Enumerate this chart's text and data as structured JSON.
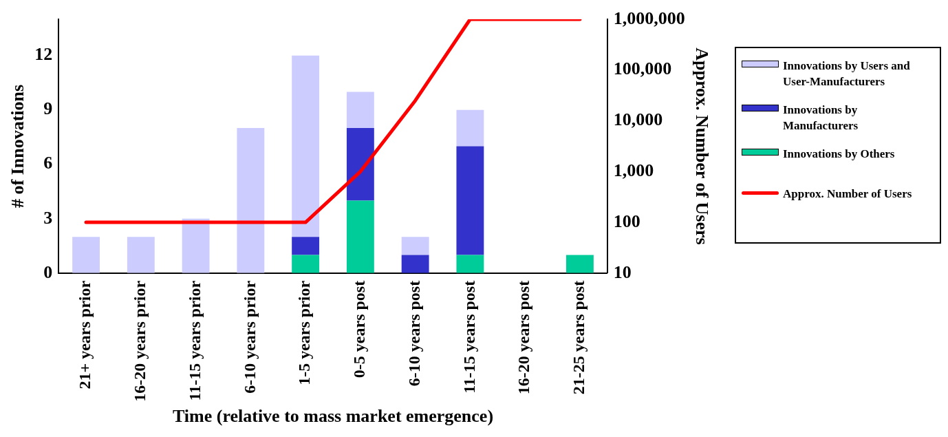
{
  "chart_data": {
    "type": "bar",
    "xlabel": "Time (relative to mass market emergence)",
    "ylabel": "# of Innovations",
    "y2label": "Approx. Number of Users",
    "categories": [
      "21+ years prior",
      "16-20 years prior",
      "11-15 years prior",
      "6-10 years prior",
      "1-5 years prior",
      "0-5 years post",
      "6-10 years post",
      "11-15 years post",
      "16-20 years post",
      "21-25 years post"
    ],
    "stacked": true,
    "legend": "right",
    "marker": "none",
    "log": "y2",
    "ylim": [
      0,
      14
    ],
    "yticks": [
      0,
      3,
      6,
      9,
      12
    ],
    "y2lim": [
      10,
      1000000
    ],
    "y2ticks": [
      10,
      100,
      {
        "value": 1000,
        "label": "1,000"
      },
      {
        "value": 10000,
        "label": "10,000"
      },
      {
        "value": 100000,
        "label": "100,000"
      },
      {
        "value": 1000000,
        "label": "1,000,000"
      }
    ],
    "series": [
      {
        "name": "Innovations by Others",
        "color": "#00cc99",
        "values": [
          0,
          0,
          0,
          0,
          1,
          4,
          0,
          1,
          0,
          1
        ]
      },
      {
        "name": "Innovations by Manufacturers",
        "color": "#3333cc",
        "values": [
          0,
          0,
          0,
          0,
          1,
          4,
          1,
          6,
          0,
          0
        ]
      },
      {
        "name": "Innovations by Users and User-Manufacturers",
        "color": "#ccccff",
        "values": [
          2,
          2,
          3,
          8,
          10,
          2,
          1,
          2,
          0,
          0
        ]
      },
      {
        "name": "Approx. Number of Users",
        "type": "line",
        "axis": "y2",
        "color": "#ff0000",
        "values": [
          100,
          100,
          100,
          100,
          100,
          1000,
          25000,
          1000000,
          1000000,
          1000000
        ]
      }
    ]
  }
}
